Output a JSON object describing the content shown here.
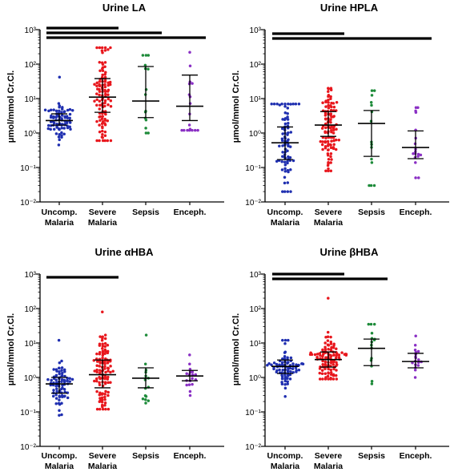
{
  "colors": {
    "Uncomp. Malaria": "#1f2fb0",
    "Severe Malaria": "#e8171d",
    "Sepsis": "#1e8b3a",
    "Enceph.": "#8a2fc4"
  },
  "chart_data": [
    {
      "type": "scatter",
      "title": "Urine LA",
      "ylabel": "μmol/mmol Cr.Cl.",
      "yscale": "log",
      "ylim": [
        0.01,
        1000
      ],
      "yticks": [
        "10⁻²",
        "10⁻¹",
        "10⁰",
        "10¹",
        "10²",
        "10³"
      ],
      "categories": [
        [
          "Uncomp.",
          "Malaria"
        ],
        [
          "Severe",
          "Malaria"
        ],
        [
          "Sepsis"
        ],
        [
          "Enceph."
        ]
      ],
      "series": [
        {
          "name": "Uncomp. Malaria",
          "median": 2.3,
          "iqr": [
            1.7,
            3.6
          ],
          "range": [
            0.45,
            42
          ],
          "n": 80
        },
        {
          "name": "Severe Malaria",
          "median": 11,
          "iqr": [
            4,
            38
          ],
          "range": [
            0.6,
            300
          ],
          "n": 110
        },
        {
          "name": "Sepsis",
          "median": 8.5,
          "iqr": [
            2.8,
            85
          ],
          "range": [
            1.0,
            180
          ],
          "n": 15
        },
        {
          "name": "Enceph.",
          "median": 6,
          "iqr": [
            2.3,
            48
          ],
          "range": [
            1.2,
            220
          ],
          "n": 18
        }
      ],
      "significance_bars": [
        [
          "Uncomp. Malaria",
          "Severe Malaria"
        ],
        [
          "Uncomp. Malaria",
          "Sepsis"
        ],
        [
          "Uncomp. Malaria",
          "Enceph."
        ]
      ]
    },
    {
      "type": "scatter",
      "title": "Urine HPLA",
      "ylabel": "μmol/mmol Cr.Cl.",
      "yscale": "log",
      "ylim": [
        0.01,
        1000
      ],
      "yticks": [
        "10⁻²",
        "10⁻¹",
        "10⁰",
        "10¹",
        "10²",
        "10³"
      ],
      "categories": [
        [
          "Uncomp.",
          "Malaria"
        ],
        [
          "Severe",
          "Malaria"
        ],
        [
          "Sepsis"
        ],
        [
          "Enceph."
        ]
      ],
      "series": [
        {
          "name": "Uncomp. Malaria",
          "median": 0.52,
          "iqr": [
            0.17,
            1.5
          ],
          "range": [
            0.02,
            7
          ],
          "n": 80
        },
        {
          "name": "Severe Malaria",
          "median": 1.7,
          "iqr": [
            0.8,
            4.2
          ],
          "range": [
            0.08,
            20
          ],
          "n": 110
        },
        {
          "name": "Sepsis",
          "median": 1.9,
          "iqr": [
            0.21,
            4.5
          ],
          "range": [
            0.03,
            17
          ],
          "n": 15
        },
        {
          "name": "Enceph.",
          "median": 0.38,
          "iqr": [
            0.18,
            1.15
          ],
          "range": [
            0.05,
            5.5
          ],
          "n": 18
        }
      ],
      "significance_bars": [
        [
          "Uncomp. Malaria",
          "Severe Malaria"
        ],
        [
          "Uncomp. Malaria",
          "Enceph."
        ]
      ]
    },
    {
      "type": "scatter",
      "title": "Urine αHBA",
      "ylabel": "μmol/mmol Cr.Cl.",
      "yscale": "log",
      "ylim": [
        0.01,
        1000
      ],
      "yticks": [
        "10⁻²",
        "10⁻¹",
        "10⁰",
        "10¹",
        "10²",
        "10³"
      ],
      "categories": [
        [
          "Uncomp.",
          "Malaria"
        ],
        [
          "Severe",
          "Malaria"
        ],
        [
          "Sepsis"
        ],
        [
          "Enceph."
        ]
      ],
      "series": [
        {
          "name": "Uncomp. Malaria",
          "median": 0.65,
          "iqr": [
            0.35,
            1.0
          ],
          "range": [
            0.08,
            12
          ],
          "n": 80
        },
        {
          "name": "Severe Malaria",
          "median": 1.2,
          "iqr": [
            0.5,
            3.2
          ],
          "range": [
            0.12,
            80
          ],
          "n": 110
        },
        {
          "name": "Sepsis",
          "median": 0.95,
          "iqr": [
            0.5,
            1.9
          ],
          "range": [
            0.18,
            17
          ],
          "n": 15
        },
        {
          "name": "Enceph.",
          "median": 1.1,
          "iqr": [
            0.8,
            1.6
          ],
          "range": [
            0.3,
            4.5
          ],
          "n": 18
        }
      ],
      "significance_bars": [
        [
          "Uncomp. Malaria",
          "Severe Malaria"
        ]
      ]
    },
    {
      "type": "scatter",
      "title": "Urine βHBA",
      "ylabel": "μmol/mmol Cr.Cl.",
      "yscale": "log",
      "ylim": [
        0.01,
        1000
      ],
      "yticks": [
        "10⁻²",
        "10⁻¹",
        "10⁰",
        "10¹",
        "10²",
        "10³"
      ],
      "categories": [
        [
          "Uncomp.",
          "Malaria"
        ],
        [
          "Severe",
          "Malaria"
        ],
        [
          "Sepsis"
        ],
        [
          "Enceph."
        ]
      ],
      "series": [
        {
          "name": "Uncomp. Malaria",
          "median": 2.1,
          "iqr": [
            1.3,
            3.2
          ],
          "range": [
            0.28,
            12
          ],
          "n": 80
        },
        {
          "name": "Severe Malaria",
          "median": 3.3,
          "iqr": [
            2.0,
            5.5
          ],
          "range": [
            0.9,
            200
          ],
          "n": 110
        },
        {
          "name": "Sepsis",
          "median": 7,
          "iqr": [
            2.2,
            13
          ],
          "range": [
            0.65,
            35
          ],
          "n": 15
        },
        {
          "name": "Enceph.",
          "median": 2.9,
          "iqr": [
            1.9,
            5.0
          ],
          "range": [
            1.0,
            16
          ],
          "n": 18
        }
      ],
      "significance_bars": [
        [
          "Uncomp. Malaria",
          "Severe Malaria"
        ],
        [
          "Uncomp. Malaria",
          "Sepsis"
        ]
      ]
    }
  ]
}
